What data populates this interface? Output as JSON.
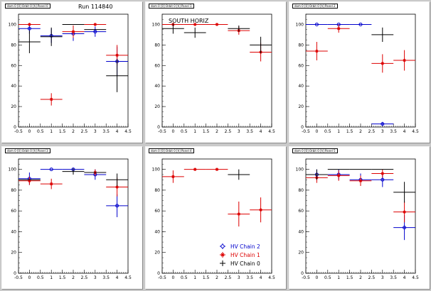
{
  "run_label": "Run 114840",
  "colors": {
    "chain2": "#0000cc",
    "chain1": "#dd0000",
    "chain0": "#000000"
  },
  "legend": [
    {
      "label": "HV Chain 2",
      "color": "#0000cc",
      "marker": "open-circle"
    },
    {
      "label": "HV Chain 1",
      "color": "#dd0000",
      "marker": "star"
    },
    {
      "label": "HV Chain 0",
      "color": "#000000",
      "marker": "cross"
    }
  ],
  "chart_data": [
    {
      "type": "scatter",
      "title": "dom 0 [0] Orbit 0 [h] Panel 0",
      "xlim": [
        -0.5,
        4.5
      ],
      "ylim": [
        0,
        110
      ],
      "xticks": [
        "-0.5",
        "0",
        "0.5",
        "1",
        "1.5",
        "2",
        "2.5",
        "3",
        "3.5",
        "4",
        "4.5"
      ],
      "yticks": [
        "0",
        "20",
        "40",
        "60",
        "80",
        "100"
      ],
      "series": [
        {
          "color": "#0000cc",
          "marker": "circle",
          "points": [
            {
              "x": 0,
              "y": 96,
              "xe": 0.5,
              "ye": 5
            },
            {
              "x": 1,
              "y": 89,
              "xe": 0.5,
              "ye": 7
            },
            {
              "x": 2,
              "y": 91,
              "xe": 0.5,
              "ye": 7
            },
            {
              "x": 3,
              "y": 93,
              "xe": 0.5,
              "ye": 5
            },
            {
              "x": 4,
              "y": 64,
              "xe": 0.5,
              "ye": 14
            }
          ]
        },
        {
          "color": "#dd0000",
          "marker": "star",
          "points": [
            {
              "x": 0,
              "y": 100,
              "xe": 0.5,
              "ye": 0
            },
            {
              "x": 1,
              "y": 27,
              "xe": 0.5,
              "ye": 6
            },
            {
              "x": 2,
              "y": 93,
              "xe": 0.5,
              "ye": 6
            },
            {
              "x": 3,
              "y": 100,
              "xe": 0.5,
              "ye": 0
            },
            {
              "x": 4,
              "y": 70,
              "xe": 0.5,
              "ye": 10
            }
          ]
        },
        {
          "color": "#000000",
          "marker": "cross",
          "points": [
            {
              "x": 0,
              "y": 83,
              "xe": 0.5,
              "ye": 11
            },
            {
              "x": 1,
              "y": 88,
              "xe": 0.5,
              "ye": 9
            },
            {
              "x": 2,
              "y": 100,
              "xe": 0.5,
              "ye": 0
            },
            {
              "x": 3,
              "y": 95,
              "xe": 0.5,
              "ye": 0
            },
            {
              "x": 4,
              "y": 50,
              "xe": 0.5,
              "ye": 16
            }
          ]
        }
      ]
    },
    {
      "type": "scatter",
      "title": "dom 0 [0] Orbit 0 [h] Panel 1",
      "xlim": [
        -0.5,
        4.5
      ],
      "ylim": [
        0,
        110
      ],
      "xticks": [
        "-0.5",
        "0",
        "0.5",
        "1",
        "1.5",
        "2",
        "2.5",
        "3",
        "3.5",
        "4",
        "4.5"
      ],
      "yticks": [
        "0",
        "20",
        "40",
        "60",
        "80",
        "100"
      ],
      "series": [
        {
          "color": "#0000cc",
          "marker": "circle",
          "points": []
        },
        {
          "color": "#dd0000",
          "marker": "star",
          "points": [
            {
              "x": 0,
              "y": 100,
              "xe": 0.5,
              "ye": 0
            },
            {
              "x": 1,
              "y": 100,
              "xe": 0.5,
              "ye": 0
            },
            {
              "x": 2,
              "y": 100,
              "xe": 0.5,
              "ye": 0
            },
            {
              "x": 3,
              "y": 94,
              "xe": 0.5,
              "ye": 4
            },
            {
              "x": 4,
              "y": 73,
              "xe": 0.5,
              "ye": 9
            }
          ]
        },
        {
          "color": "#000000",
          "marker": "cross",
          "points": [
            {
              "x": 0,
              "y": 96,
              "xe": 0.5,
              "ye": 5
            },
            {
              "x": 1,
              "y": 92,
              "xe": 0.5,
              "ye": 5
            },
            {
              "x": 3,
              "y": 96,
              "xe": 0.5,
              "ye": 3
            },
            {
              "x": 4,
              "y": 80,
              "xe": 0.5,
              "ye": 8
            }
          ]
        }
      ]
    },
    {
      "type": "scatter",
      "title": "dom 0 [0] Orbit 0 [h] Panel 2",
      "xlim": [
        -0.5,
        4.5
      ],
      "ylim": [
        0,
        110
      ],
      "xticks": [
        "-0.5",
        "0",
        "0.5",
        "1",
        "1.5",
        "2",
        "2.5",
        "3",
        "3.5",
        "4",
        "4.5"
      ],
      "yticks": [
        "0",
        "20",
        "40",
        "60",
        "80",
        "100"
      ],
      "series": [
        {
          "color": "#0000cc",
          "marker": "circle",
          "points": [
            {
              "x": 0,
              "y": 100,
              "xe": 0.5,
              "ye": 0
            },
            {
              "x": 1,
              "y": 100,
              "xe": 0.5,
              "ye": 0
            },
            {
              "x": 2,
              "y": 100,
              "xe": 0.5,
              "ye": 0
            },
            {
              "x": 3,
              "y": 3,
              "xe": 0.5,
              "ye": 2
            }
          ]
        },
        {
          "color": "#dd0000",
          "marker": "star",
          "points": [
            {
              "x": 0,
              "y": 74,
              "xe": 0.5,
              "ye": 9
            },
            {
              "x": 1,
              "y": 96,
              "xe": 0.5,
              "ye": 4
            },
            {
              "x": 3,
              "y": 62,
              "xe": 0.5,
              "ye": 9
            },
            {
              "x": 4,
              "y": 65,
              "xe": 0.5,
              "ye": 10
            }
          ]
        },
        {
          "color": "#000000",
          "marker": "cross",
          "points": [
            {
              "x": 3,
              "y": 90,
              "xe": 0.5,
              "ye": 7
            }
          ]
        }
      ]
    },
    {
      "type": "scatter",
      "title": "dom 0 [0] Orbit 0 [h] Panel 3",
      "xlim": [
        -0.5,
        4.5
      ],
      "ylim": [
        0,
        110
      ],
      "xticks": [
        "-0.5",
        "0",
        "0.5",
        "1",
        "1.5",
        "2",
        "2.5",
        "3",
        "3.5",
        "4",
        "4.5"
      ],
      "yticks": [
        "0",
        "20",
        "40",
        "60",
        "80",
        "100"
      ],
      "series": [
        {
          "color": "#0000cc",
          "marker": "circle",
          "points": [
            {
              "x": 0,
              "y": 91,
              "xe": 0.5,
              "ye": 6
            },
            {
              "x": 1,
              "y": 100,
              "xe": 0.5,
              "ye": 0
            },
            {
              "x": 2,
              "y": 100,
              "xe": 0.5,
              "ye": 0
            },
            {
              "x": 3,
              "y": 95,
              "xe": 0.5,
              "ye": 5
            },
            {
              "x": 4,
              "y": 65,
              "xe": 0.5,
              "ye": 11
            }
          ]
        },
        {
          "color": "#dd0000",
          "marker": "star",
          "points": [
            {
              "x": 0,
              "y": 89,
              "xe": 0.5,
              "ye": 4
            },
            {
              "x": 1,
              "y": 86,
              "xe": 0.5,
              "ye": 5
            },
            {
              "x": 3,
              "y": 97,
              "xe": 0.5,
              "ye": 3
            },
            {
              "x": 4,
              "y": 83,
              "xe": 0.5,
              "ye": 9
            }
          ]
        },
        {
          "color": "#000000",
          "marker": "cross",
          "points": [
            {
              "x": 0,
              "y": 90,
              "xe": 0.5,
              "ye": 0
            },
            {
              "x": 2,
              "y": 98,
              "xe": 0.5,
              "ye": 3
            },
            {
              "x": 3,
              "y": 97,
              "xe": 0.5,
              "ye": 0
            },
            {
              "x": 4,
              "y": 90,
              "xe": 0.5,
              "ye": 6
            }
          ]
        }
      ]
    },
    {
      "type": "scatter",
      "title": "dom 0 [0] Orbit 0 [h] Panel 4",
      "xlim": [
        -0.5,
        4.5
      ],
      "ylim": [
        0,
        110
      ],
      "xticks": [
        "-0.5",
        "0",
        "0.5",
        "1",
        "1.5",
        "2",
        "2.5",
        "3",
        "3.5",
        "4",
        "4.5"
      ],
      "yticks": [
        "0",
        "20",
        "40",
        "60",
        "80",
        "100"
      ],
      "series": [
        {
          "color": "#0000cc",
          "marker": "circle",
          "points": []
        },
        {
          "color": "#dd0000",
          "marker": "star",
          "points": [
            {
              "x": 0,
              "y": 93,
              "xe": 0.5,
              "ye": 6
            },
            {
              "x": 1,
              "y": 100,
              "xe": 0.5,
              "ye": 0
            },
            {
              "x": 2,
              "y": 100,
              "xe": 0.5,
              "ye": 0
            },
            {
              "x": 3,
              "y": 57,
              "xe": 0.5,
              "ye": 12
            },
            {
              "x": 4,
              "y": 61,
              "xe": 0.5,
              "ye": 12
            }
          ]
        },
        {
          "color": "#000000",
          "marker": "cross",
          "points": [
            {
              "x": 3,
              "y": 95,
              "xe": 0.5,
              "ye": 5
            }
          ]
        }
      ]
    },
    {
      "type": "scatter",
      "title": "dom 0 [0] Orbit 0 [h] Panel 5",
      "xlim": [
        -0.5,
        4.5
      ],
      "ylim": [
        0,
        110
      ],
      "xticks": [
        "-0.5",
        "0",
        "0.5",
        "1",
        "1.5",
        "2",
        "2.5",
        "3",
        "3.5",
        "4",
        "4.5"
      ],
      "yticks": [
        "0",
        "20",
        "40",
        "60",
        "80",
        "100"
      ],
      "series": [
        {
          "color": "#0000cc",
          "marker": "circle",
          "points": [
            {
              "x": 0,
              "y": 95,
              "xe": 0.5,
              "ye": 5
            },
            {
              "x": 1,
              "y": 95,
              "xe": 0.5,
              "ye": 5
            },
            {
              "x": 2,
              "y": 90,
              "xe": 0.5,
              "ye": 6
            },
            {
              "x": 3,
              "y": 90,
              "xe": 0.5,
              "ye": 7
            },
            {
              "x": 4,
              "y": 44,
              "xe": 0.5,
              "ye": 12
            }
          ]
        },
        {
          "color": "#dd0000",
          "marker": "star",
          "points": [
            {
              "x": 0,
              "y": 92,
              "xe": 0.5,
              "ye": 5
            },
            {
              "x": 1,
              "y": 94,
              "xe": 0.5,
              "ye": 5
            },
            {
              "x": 2,
              "y": 89,
              "xe": 0.5,
              "ye": 5
            },
            {
              "x": 3,
              "y": 96,
              "xe": 0.5,
              "ye": 4
            },
            {
              "x": 4,
              "y": 59,
              "xe": 0.5,
              "ye": 10
            }
          ]
        },
        {
          "color": "#000000",
          "marker": "cross",
          "points": [
            {
              "x": 0,
              "y": 95,
              "xe": 0.5,
              "ye": 5
            },
            {
              "x": 1,
              "y": 100,
              "xe": 0.5,
              "ye": 0
            },
            {
              "x": 2,
              "y": 100,
              "xe": 0.5,
              "ye": 0
            },
            {
              "x": 3,
              "y": 100,
              "xe": 0.5,
              "ye": 0
            },
            {
              "x": 4,
              "y": 78,
              "xe": 0.5,
              "ye": 10
            }
          ]
        }
      ]
    }
  ],
  "region_label": "SOUTH HORIZ"
}
